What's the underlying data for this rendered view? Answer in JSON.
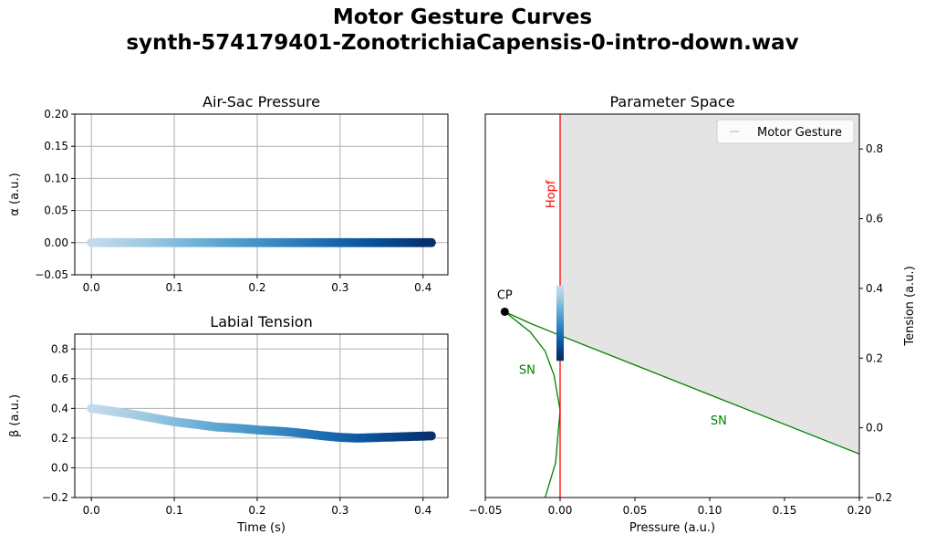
{
  "figure": {
    "title_line1": "Motor Gesture Curves",
    "title_line2": "synth-574179401-ZonotrichiaCapensis-0-intro-down.wav"
  },
  "chart_data": [
    {
      "type": "scatter",
      "title": "Air-Sac Pressure",
      "xlabel": "",
      "ylabel": "α (a.u.)",
      "xlim": [
        -0.02,
        0.43
      ],
      "ylim": [
        -0.05,
        0.2
      ],
      "xticks": [
        "0.0",
        "0.1",
        "0.2",
        "0.3",
        "0.4"
      ],
      "yticks": [
        "−0.05",
        "0.00",
        "0.05",
        "0.10",
        "0.15",
        "0.20"
      ],
      "grid": true,
      "colormap": [
        "#c6dbef",
        "#9ecae1",
        "#6baed6",
        "#4292c6",
        "#2171b5",
        "#08519c",
        "#08306b"
      ],
      "x": [
        0.0,
        0.05,
        0.1,
        0.15,
        0.2,
        0.25,
        0.3,
        0.35,
        0.41
      ],
      "y": [
        0.0,
        0.0,
        0.0,
        0.0,
        0.0,
        0.0,
        0.0,
        0.0,
        0.0
      ]
    },
    {
      "type": "scatter",
      "title": "Labial Tension",
      "xlabel": "Time (s)",
      "ylabel": "β (a.u.)",
      "xlim": [
        -0.02,
        0.43
      ],
      "ylim": [
        -0.2,
        0.9
      ],
      "xticks": [
        "0.0",
        "0.1",
        "0.2",
        "0.3",
        "0.4"
      ],
      "yticks": [
        "−0.2",
        "0.0",
        "0.2",
        "0.4",
        "0.6",
        "0.8"
      ],
      "grid": true,
      "colormap": [
        "#c6dbef",
        "#9ecae1",
        "#6baed6",
        "#4292c6",
        "#2171b5",
        "#08519c",
        "#08306b"
      ],
      "x": [
        0.0,
        0.02,
        0.05,
        0.08,
        0.1,
        0.13,
        0.15,
        0.18,
        0.2,
        0.23,
        0.25,
        0.28,
        0.3,
        0.32,
        0.35,
        0.38,
        0.41
      ],
      "y": [
        0.4,
        0.385,
        0.36,
        0.33,
        0.31,
        0.29,
        0.275,
        0.265,
        0.255,
        0.245,
        0.235,
        0.215,
        0.205,
        0.2,
        0.205,
        0.21,
        0.215
      ]
    },
    {
      "type": "line",
      "title": "Parameter Space",
      "xlabel": "Pressure (a.u.)",
      "ylabel": "Tension (a.u.)",
      "xlim": [
        -0.05,
        0.2
      ],
      "ylim": [
        -0.2,
        0.9
      ],
      "xticks": [
        "−0.05",
        "0.00",
        "0.05",
        "0.10",
        "0.15",
        "0.20"
      ],
      "yticks": [
        "−0.2",
        "0.0",
        "0.2",
        "0.4",
        "0.6",
        "0.8"
      ],
      "grid": false,
      "legend": {
        "position": "upper right",
        "entries": [
          "Motor Gesture"
        ]
      },
      "annotations": {
        "hopf": "Hopf",
        "cp": "CP",
        "sn_left": "SN",
        "sn_right": "SN"
      },
      "colors": {
        "hopf": "#ff0000",
        "sn": "#008000",
        "shaded_region": "#e4e4e4",
        "cp_point": "#000000"
      },
      "hopf_x": 0.0,
      "cp": [
        -0.037,
        0.333
      ],
      "sn_right_curve": {
        "x": [
          -0.037,
          -0.02,
          0.0,
          0.05,
          0.1,
          0.15,
          0.2
        ],
        "y": [
          0.333,
          0.3,
          0.265,
          0.18,
          0.095,
          0.01,
          -0.075
        ]
      },
      "sn_left_curve": {
        "x": [
          -0.037,
          -0.02,
          -0.01,
          -0.004,
          0.0,
          -0.003,
          -0.01
        ],
        "y": [
          0.333,
          0.275,
          0.22,
          0.15,
          0.05,
          -0.1,
          -0.2
        ]
      },
      "motor_gesture": {
        "x": [
          0.0,
          0.0,
          0.0,
          0.0,
          0.0,
          0.0,
          0.0,
          0.0,
          0.0
        ],
        "y": [
          0.4,
          0.37,
          0.34,
          0.31,
          0.28,
          0.255,
          0.235,
          0.215,
          0.2
        ]
      }
    }
  ]
}
